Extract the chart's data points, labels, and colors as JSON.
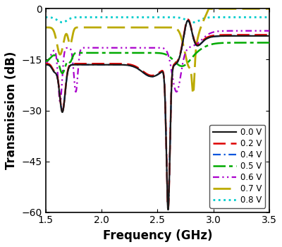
{
  "xlim": [
    1.5,
    3.5
  ],
  "ylim": [
    -60,
    0
  ],
  "xlabel": "Frequency (GHz)",
  "ylabel": "Transmission (dB)",
  "xticks": [
    1.5,
    2.0,
    2.5,
    3.0,
    3.5
  ],
  "yticks": [
    0,
    -15,
    -30,
    -45,
    -60
  ],
  "background_color": "#ffffff",
  "series": [
    {
      "label": "0.0 V",
      "color": "#1a1a1a",
      "key": "v00"
    },
    {
      "label": "0.2 V",
      "color": "#dd0000",
      "key": "v02"
    },
    {
      "label": "0.4 V",
      "color": "#0055dd",
      "key": "v04"
    },
    {
      "label": "0.5 V",
      "color": "#00aa00",
      "key": "v05"
    },
    {
      "label": "0.6 V",
      "color": "#aa00cc",
      "key": "v06"
    },
    {
      "label": "0.7 V",
      "color": "#bbaa00",
      "key": "v07"
    },
    {
      "label": "0.8 V",
      "color": "#00cccc",
      "key": "v08"
    }
  ],
  "label_fontsize": 12,
  "tick_fontsize": 10,
  "legend_fontsize": 8.5
}
